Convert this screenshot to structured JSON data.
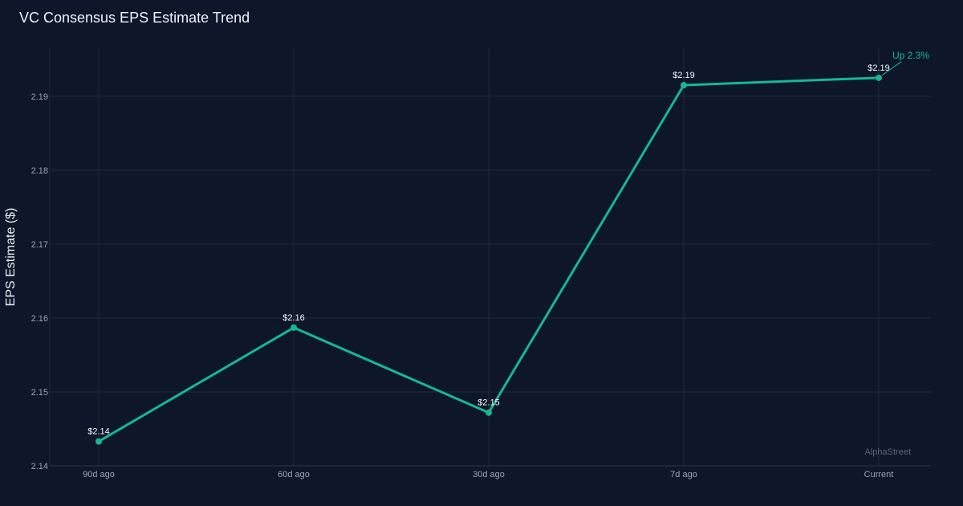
{
  "chart_data": {
    "type": "line",
    "title": "VC Consensus EPS Estimate Trend",
    "xlabel": "",
    "ylabel": "EPS Estimate ($)",
    "categories": [
      "90d ago",
      "60d ago",
      "30d ago",
      "7d ago",
      "Current"
    ],
    "series": [
      {
        "values": [
          2.1433,
          2.1587,
          2.1472,
          2.1915,
          2.1925
        ],
        "data_labels": [
          "$2.14",
          "$2.16",
          "$2.15",
          "$2.19",
          "$2.19"
        ]
      }
    ],
    "ylim": [
      2.14,
      2.1965
    ],
    "yticks": [
      2.14,
      2.15,
      2.16,
      2.17,
      2.18,
      2.19
    ],
    "ytick_labels": [
      "2.14",
      "2.15",
      "2.16",
      "2.17",
      "2.18",
      "2.19"
    ],
    "grid": true,
    "annotation": {
      "text": "Up 2.3%",
      "category": "Current"
    },
    "watermark": "AlphaStreet"
  },
  "colors": {
    "background": "#0e1729",
    "line": "#14b892",
    "grid": "#1e2a3e",
    "annotation": "#14b892"
  }
}
